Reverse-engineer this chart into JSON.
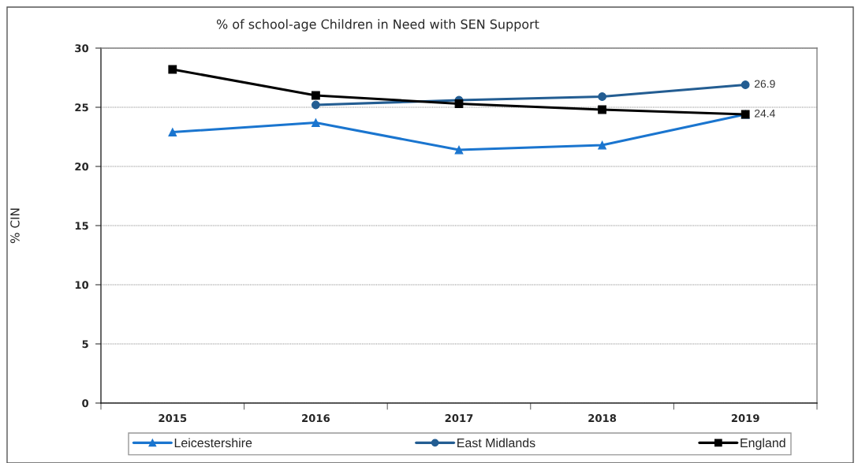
{
  "chart_data": {
    "type": "line",
    "title": "% of school-age Children in Need with SEN Support",
    "ylabel": "% CIN",
    "categories": [
      "2015",
      "2016",
      "2017",
      "2018",
      "2019"
    ],
    "series": [
      {
        "name": "Leicestershire",
        "color": "#1a75cf",
        "marker": "triangle",
        "values": [
          22.9,
          23.7,
          21.4,
          21.8,
          24.4
        ]
      },
      {
        "name": "East Midlands",
        "color": "#235d92",
        "marker": "circle",
        "values": [
          null,
          25.2,
          25.6,
          25.9,
          26.9
        ],
        "value_labels": [
          null,
          null,
          null,
          null,
          "26.9"
        ]
      },
      {
        "name": "England",
        "color": "#000000",
        "marker": "square",
        "values": [
          28.2,
          26.0,
          25.3,
          24.8,
          24.4
        ],
        "value_labels": [
          null,
          null,
          null,
          null,
          "24.4"
        ]
      }
    ],
    "ylim": [
      0,
      30
    ],
    "yticks": [
      0,
      5,
      10,
      15,
      20,
      25,
      30
    ],
    "grid": "y",
    "legend": "bottom",
    "line_style": "solid"
  }
}
